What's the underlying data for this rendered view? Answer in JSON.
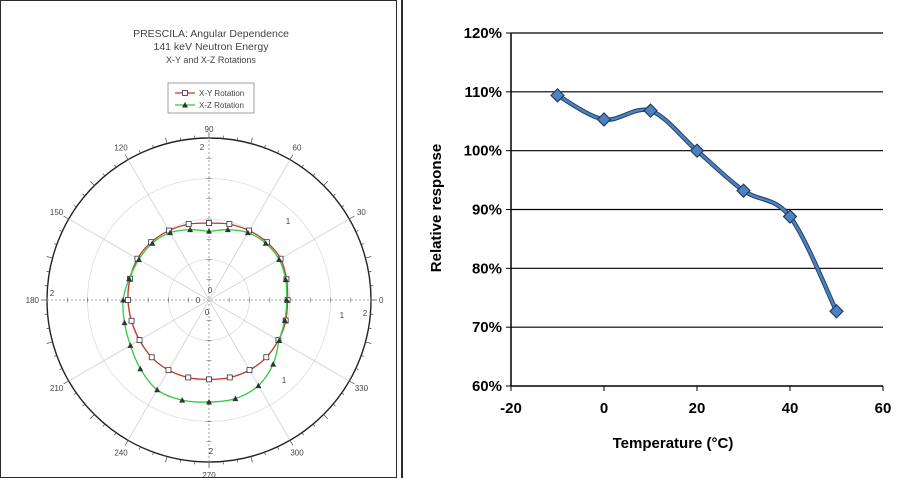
{
  "chart_data": [
    {
      "type": "polar",
      "title": "PRESCILA: Angular Dependence",
      "subtitle": "141 keV Neutron Energy",
      "subtitle2": "X-Y and X-Z Rotations",
      "legend_placement": "top-center",
      "angle_labels": [
        "0",
        "30",
        "60",
        "90",
        "120",
        "150",
        "180",
        "210",
        "240",
        "270",
        "300",
        "330"
      ],
      "rmax": 2,
      "radial_labels": [
        "2",
        "2",
        "2",
        "2",
        "0",
        "0",
        "0",
        "1",
        "1",
        "1"
      ],
      "grid": true,
      "series": [
        {
          "name": "X-Y Rotation",
          "color": "#c0392b",
          "marker": "square",
          "angles": [
            0,
            15,
            30,
            45,
            60,
            75,
            90,
            105,
            120,
            135,
            150,
            165,
            180,
            195,
            210,
            225,
            240,
            255,
            270,
            285,
            300,
            315,
            330,
            345
          ],
          "r": [
            0.97,
            0.99,
            1.02,
            1.01,
            0.99,
            0.97,
            0.95,
            0.97,
            0.99,
            1.01,
            1.02,
            1.01,
            1.0,
            0.99,
            0.99,
            1.0,
            1.0,
            0.99,
            0.98,
            0.99,
            1.0,
            1.0,
            0.99,
            0.98
          ]
        },
        {
          "name": "X-Z Rotation",
          "color": "#2ecc40",
          "marker": "triangle",
          "angles": [
            0,
            15,
            30,
            45,
            60,
            75,
            90,
            105,
            120,
            135,
            150,
            165,
            180,
            195,
            210,
            225,
            240,
            255,
            270,
            285,
            300,
            315,
            330,
            345
          ],
          "r": [
            0.96,
            0.98,
            1.0,
            0.99,
            0.96,
            0.9,
            0.85,
            0.9,
            0.96,
            0.99,
            1.0,
            1.02,
            1.06,
            1.08,
            1.12,
            1.2,
            1.28,
            1.28,
            1.26,
            1.26,
            1.22,
            1.12,
            1.0,
            0.97
          ]
        }
      ]
    },
    {
      "type": "line",
      "title": "",
      "xlabel": "Temperature (°C)",
      "ylabel": "Relative response",
      "xlim": [
        -20,
        60
      ],
      "ylim": [
        0.6,
        1.2
      ],
      "xticks": [
        "-20",
        "0",
        "20",
        "40",
        "60"
      ],
      "yticks": [
        "60%",
        "70%",
        "80%",
        "90%",
        "100%",
        "110%",
        "120%"
      ],
      "grid": true,
      "series": [
        {
          "x": [
            -10,
            0,
            10,
            20,
            30,
            40,
            50
          ],
          "y": [
            1.094,
            1.053,
            1.068,
            1.0,
            0.932,
            0.888,
            0.727
          ],
          "color": "#2e5f9e",
          "marker_color": "#4f81bd"
        }
      ]
    }
  ]
}
